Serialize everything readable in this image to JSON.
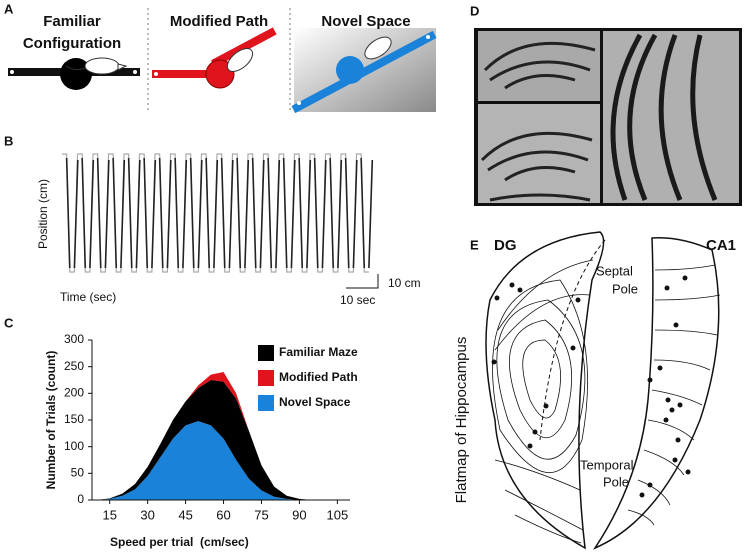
{
  "panel_a": {
    "label": "A",
    "familiar": [
      "Familiar",
      "Configuration"
    ],
    "modified": "Modified Path",
    "novel": "Novel Space"
  },
  "panel_b": {
    "label": "B",
    "y_label": "Position (cm)",
    "x_label": "Time (sec)",
    "scale_y": "10 cm",
    "scale_x": "10 sec"
  },
  "panel_c": {
    "label": "C"
  },
  "chart_data": {
    "type": "stacked_area",
    "x_label": "Speed per trial  (cm/sec)",
    "y_label": "Number of Trials (count)",
    "x": [
      10,
      15,
      20,
      25,
      30,
      35,
      40,
      45,
      50,
      55,
      60,
      65,
      70,
      75,
      80,
      85,
      90,
      95,
      100
    ],
    "series": [
      {
        "name": "Novel Space",
        "color": "#1a82d8",
        "values": [
          0,
          2,
          8,
          20,
          45,
          80,
          115,
          140,
          148,
          140,
          115,
          75,
          40,
          18,
          6,
          2,
          0,
          0,
          0
        ]
      },
      {
        "name": "Familiar Maze",
        "color": "#000000",
        "values": [
          0,
          1,
          4,
          10,
          17,
          25,
          35,
          45,
          62,
          85,
          107,
          115,
          90,
          47,
          19,
          6,
          2,
          0,
          0
        ]
      },
      {
        "name": "Modified Path",
        "color": "#e0141c",
        "values": [
          0,
          0,
          0,
          0,
          0,
          0,
          0,
          0,
          5,
          10,
          18,
          10,
          0,
          0,
          0,
          0,
          0,
          0,
          0
        ]
      }
    ],
    "legend_order": [
      1,
      2,
      0
    ],
    "xlim": [
      8,
      110
    ],
    "ylim": [
      0,
      300
    ],
    "xticks": [
      15,
      30,
      45,
      60,
      75,
      90,
      105
    ],
    "yticks": [
      0,
      50,
      100,
      150,
      200,
      250,
      300
    ]
  },
  "panel_d": {
    "label": "D"
  },
  "panel_e": {
    "label": "E",
    "dg": "DG",
    "ca1": "CA1",
    "septal": [
      "Septal",
      "Pole"
    ],
    "temporal": [
      "Temporal",
      "Pole"
    ],
    "y_label": "Flatmap of Hippocampus"
  }
}
